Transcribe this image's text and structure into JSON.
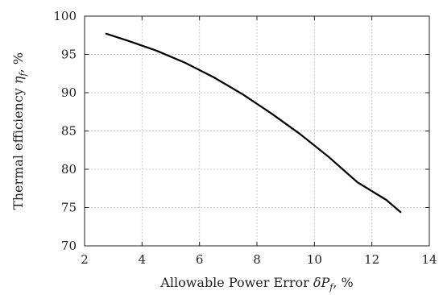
{
  "chart_data": {
    "type": "line",
    "title": "",
    "xlabel": "Allowable Power Error δP_f, %",
    "ylabel": "Thermal efficiency η_f, %",
    "xlim": [
      2,
      14
    ],
    "ylim": [
      70,
      100
    ],
    "xticks": [
      2,
      4,
      6,
      8,
      10,
      12,
      14
    ],
    "yticks": [
      70,
      75,
      80,
      85,
      90,
      95,
      100
    ],
    "grid": true,
    "series": [
      {
        "x": [
          2.75,
          3.5,
          4.5,
          5.5,
          6.5,
          7.5,
          8.5,
          9.5,
          10.5,
          11.5,
          12.5,
          13.0
        ],
        "y": [
          97.7,
          96.8,
          95.5,
          93.9,
          92.0,
          89.8,
          87.3,
          84.6,
          81.6,
          78.3,
          76.0,
          74.4
        ],
        "color": "#000000"
      }
    ]
  }
}
